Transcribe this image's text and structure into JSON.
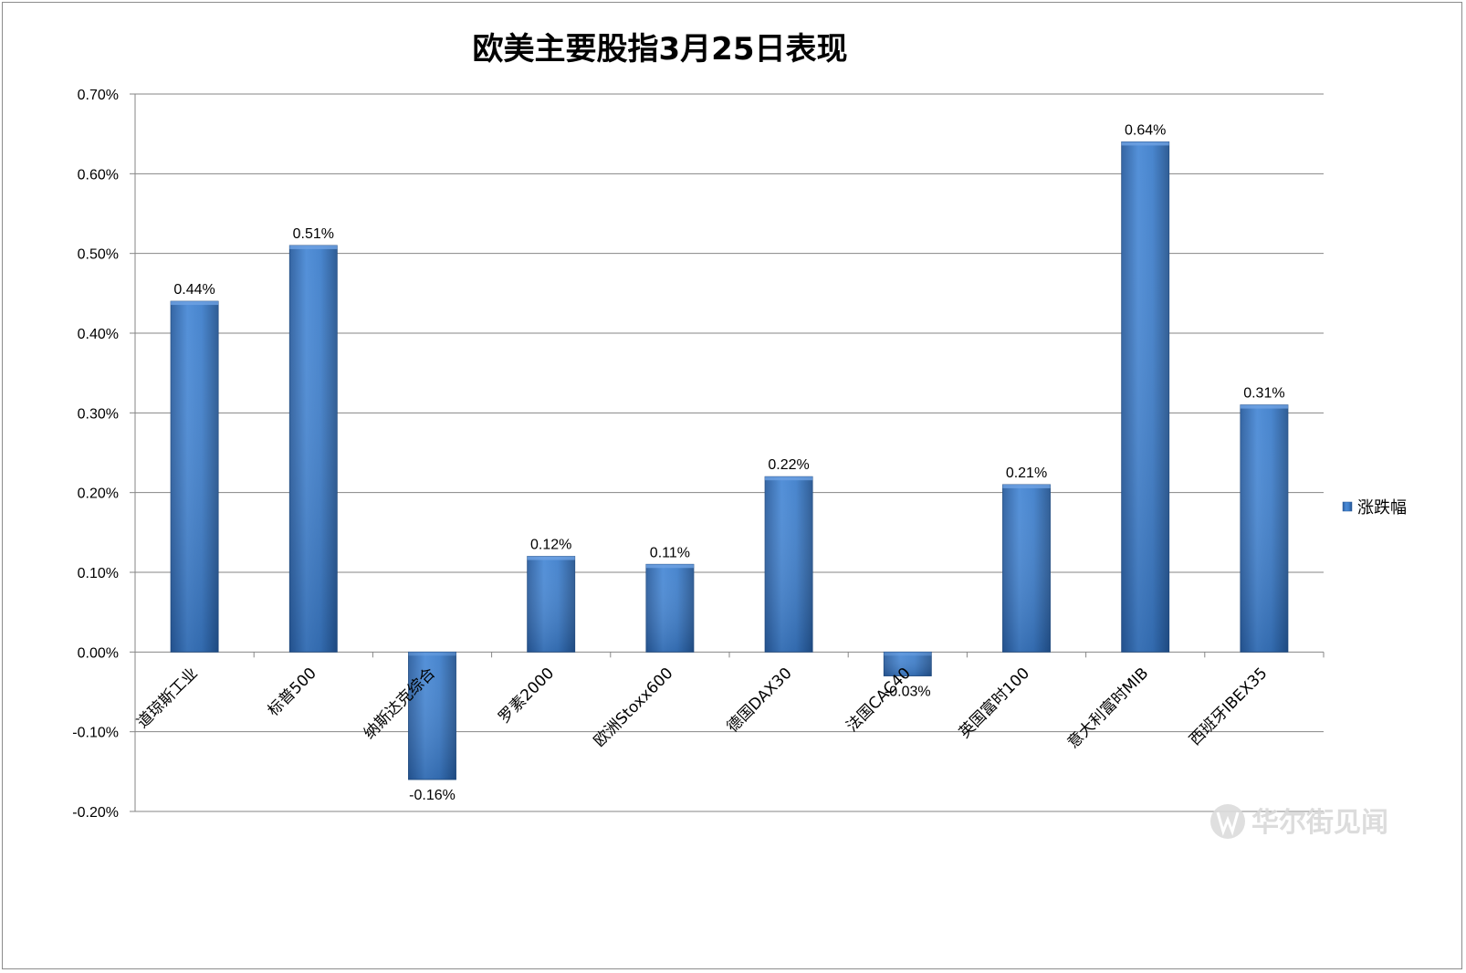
{
  "chart_data": {
    "type": "bar",
    "title": "欧美主要股指3月25日表现",
    "categories": [
      "道琼斯工业",
      "标普500",
      "纳斯达克综合",
      "罗素2000",
      "欧洲Stoxx600",
      "德国DAX30",
      "法国CAC40",
      "英国富时100",
      "意大利富时MIB",
      "西班牙IBEX35"
    ],
    "series": [
      {
        "name": "涨跌幅",
        "values": [
          0.44,
          0.51,
          -0.16,
          0.12,
          0.11,
          0.22,
          -0.03,
          0.21,
          0.64,
          0.31
        ],
        "labels": [
          "0.44%",
          "0.51%",
          "-0.16%",
          "0.12%",
          "0.11%",
          "0.22%",
          "-0.03%",
          "0.21%",
          "0.64%",
          "0.31%"
        ]
      }
    ],
    "ylim": [
      -0.2,
      0.7
    ],
    "yticks": [
      0.7,
      0.6,
      0.5,
      0.4,
      0.3,
      0.2,
      0.1,
      0.0,
      -0.1,
      -0.2
    ],
    "ytick_labels": [
      "0.70%",
      "0.60%",
      "0.50%",
      "0.40%",
      "0.30%",
      "0.20%",
      "0.10%",
      "0.00%",
      "-0.10%",
      "-0.20%"
    ],
    "grid": true,
    "legend": "right",
    "bar_color": "#3a77c0"
  },
  "watermark": {
    "text": "华尔街见闻",
    "logo_icon": "wallstreetcn-logo-icon"
  }
}
